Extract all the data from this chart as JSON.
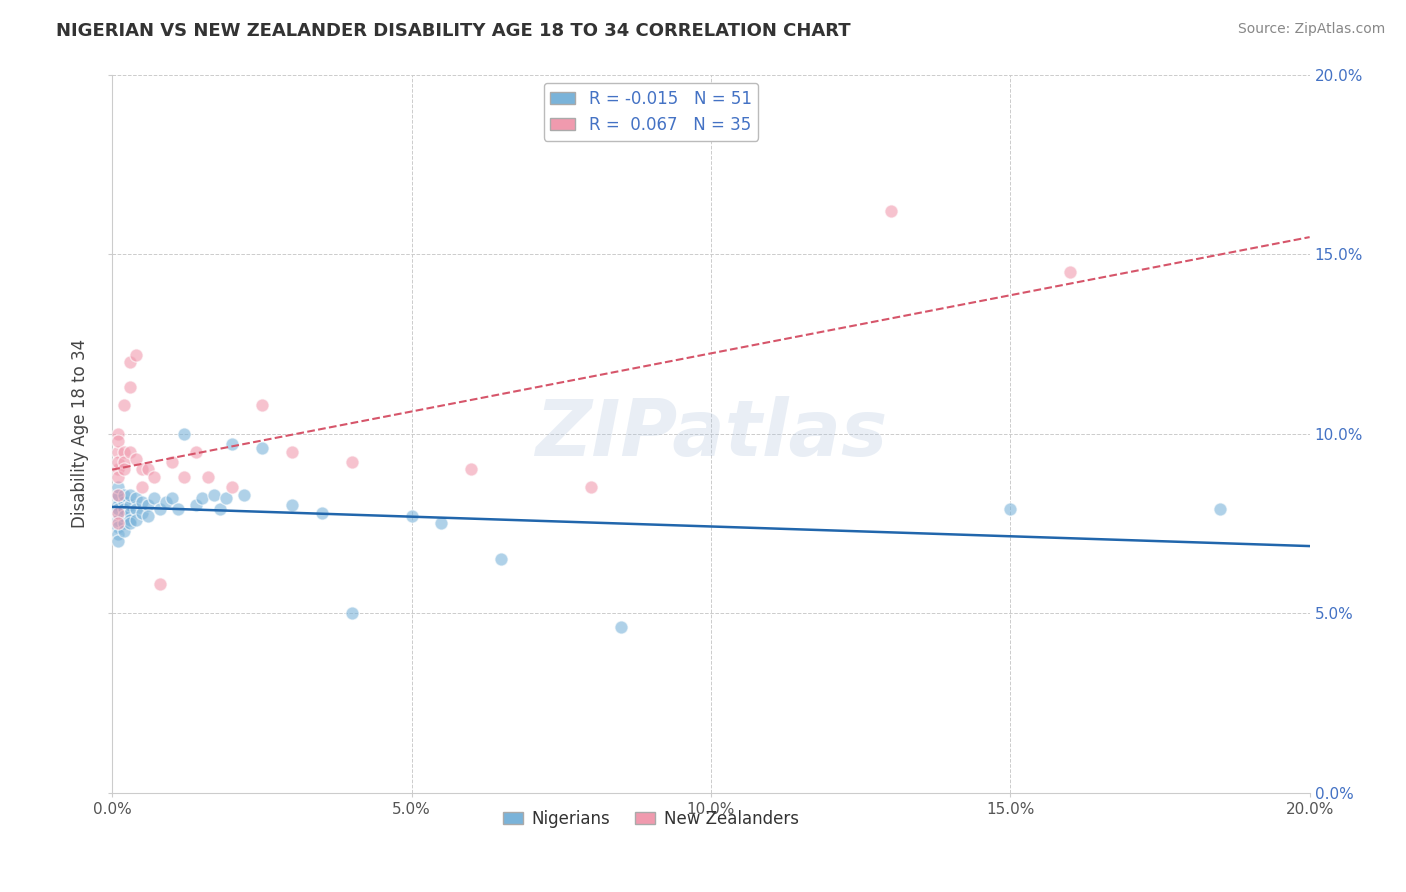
{
  "title": "NIGERIAN VS NEW ZEALANDER DISABILITY AGE 18 TO 34 CORRELATION CHART",
  "source": "Source: ZipAtlas.com",
  "ylabel": "Disability Age 18 to 34",
  "watermark": "ZIPatlas",
  "xlim": [
    0.0,
    0.2
  ],
  "ylim": [
    0.0,
    0.2
  ],
  "nigerian_x": [
    0.001,
    0.001,
    0.001,
    0.001,
    0.001,
    0.001,
    0.001,
    0.001,
    0.001,
    0.001,
    0.002,
    0.002,
    0.002,
    0.002,
    0.002,
    0.002,
    0.003,
    0.003,
    0.003,
    0.003,
    0.003,
    0.004,
    0.004,
    0.004,
    0.005,
    0.005,
    0.006,
    0.006,
    0.007,
    0.008,
    0.009,
    0.01,
    0.011,
    0.012,
    0.014,
    0.015,
    0.017,
    0.018,
    0.019,
    0.02,
    0.022,
    0.025,
    0.03,
    0.035,
    0.04,
    0.05,
    0.055,
    0.065,
    0.085,
    0.15,
    0.185
  ],
  "nigerian_y": [
    0.082,
    0.08,
    0.078,
    0.083,
    0.076,
    0.085,
    0.079,
    0.074,
    0.072,
    0.07,
    0.081,
    0.079,
    0.077,
    0.083,
    0.075,
    0.073,
    0.08,
    0.078,
    0.076,
    0.083,
    0.075,
    0.082,
    0.079,
    0.076,
    0.081,
    0.078,
    0.08,
    0.077,
    0.082,
    0.079,
    0.081,
    0.082,
    0.079,
    0.1,
    0.08,
    0.082,
    0.083,
    0.079,
    0.082,
    0.097,
    0.083,
    0.096,
    0.08,
    0.078,
    0.05,
    0.077,
    0.075,
    0.065,
    0.046,
    0.079,
    0.079
  ],
  "nz_x": [
    0.001,
    0.001,
    0.001,
    0.001,
    0.001,
    0.001,
    0.001,
    0.001,
    0.001,
    0.002,
    0.002,
    0.002,
    0.002,
    0.003,
    0.003,
    0.003,
    0.004,
    0.004,
    0.005,
    0.005,
    0.006,
    0.007,
    0.008,
    0.01,
    0.012,
    0.014,
    0.016,
    0.02,
    0.025,
    0.03,
    0.04,
    0.06,
    0.08,
    0.13,
    0.16
  ],
  "nz_y": [
    0.09,
    0.088,
    0.083,
    0.095,
    0.092,
    0.1,
    0.098,
    0.078,
    0.075,
    0.095,
    0.092,
    0.108,
    0.09,
    0.12,
    0.113,
    0.095,
    0.122,
    0.093,
    0.09,
    0.085,
    0.09,
    0.088,
    0.058,
    0.092,
    0.088,
    0.095,
    0.088,
    0.085,
    0.108,
    0.095,
    0.092,
    0.09,
    0.085,
    0.162,
    0.145
  ],
  "nigerian_color": "#7ab3d9",
  "nz_color": "#f09aae",
  "nigerian_trend_color": "#2166ac",
  "nz_trend_color": "#d6556a",
  "background_color": "#ffffff",
  "grid_color": "#cccccc",
  "title_color": "#333333",
  "source_color": "#888888",
  "legend_names": [
    "Nigerians",
    "New Zealanders"
  ],
  "r_nigerian": -0.015,
  "n_nigerian": 51,
  "r_nz": 0.067,
  "n_nz": 35
}
